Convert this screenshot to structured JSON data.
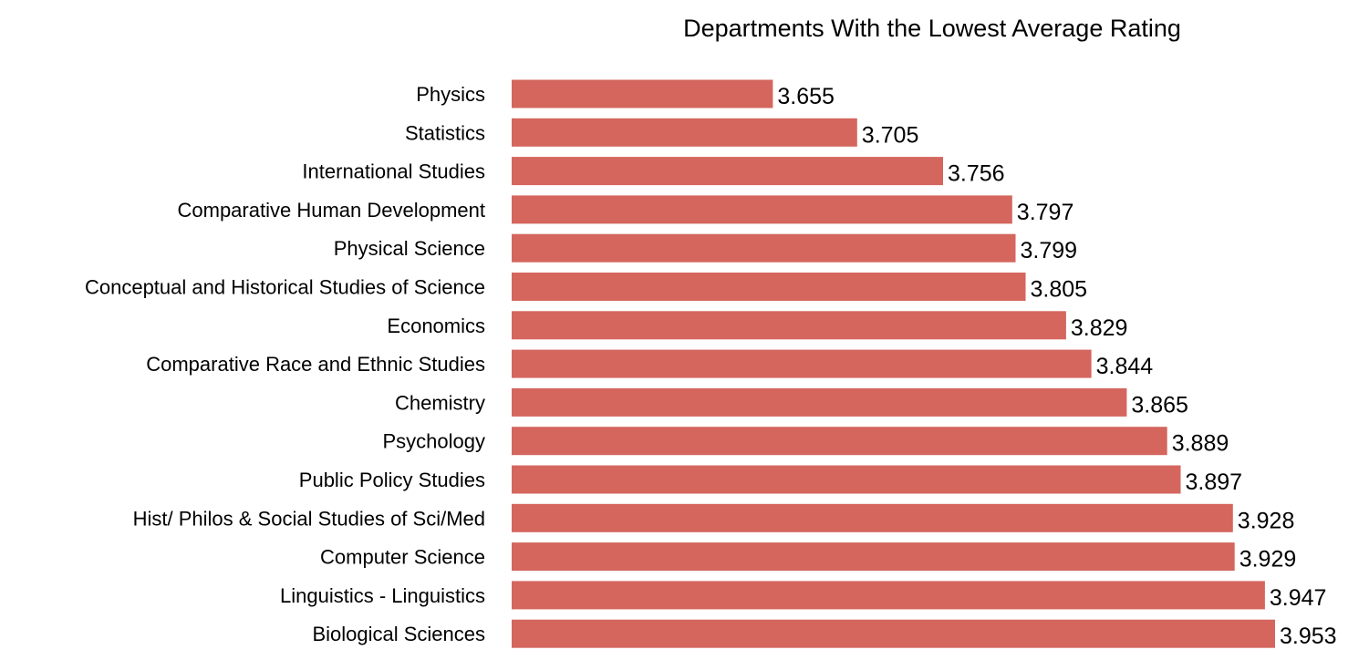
{
  "chart_data": {
    "type": "bar",
    "orientation": "horizontal",
    "title": "Departments With the Lowest Average Rating",
    "xlabel": "",
    "ylabel": "",
    "grid": false,
    "legend": "none",
    "bar_color": "#d4665e",
    "categories": [
      "Physics",
      "Statistics",
      "International Studies",
      "Comparative Human Development",
      "Physical Science",
      "Conceptual and Historical Studies of Science",
      "Economics",
      "Comparative Race and Ethnic Studies",
      "Chemistry",
      "Psychology",
      "Public Policy Studies",
      "Hist/ Philos & Social Studies of Sci/Med",
      "Computer Science",
      "Linguistics - Linguistics",
      "Biological Sciences"
    ],
    "values": [
      3.655,
      3.705,
      3.756,
      3.797,
      3.799,
      3.805,
      3.829,
      3.844,
      3.865,
      3.889,
      3.897,
      3.928,
      3.929,
      3.947,
      3.953
    ],
    "value_labels": [
      "3.655",
      "3.705",
      "3.756",
      "3.797",
      "3.799",
      "3.805",
      "3.829",
      "3.844",
      "3.865",
      "3.889",
      "3.897",
      "3.928",
      "3.929",
      "3.947",
      "3.953"
    ],
    "xlim": [
      3.5,
      3.953
    ]
  }
}
